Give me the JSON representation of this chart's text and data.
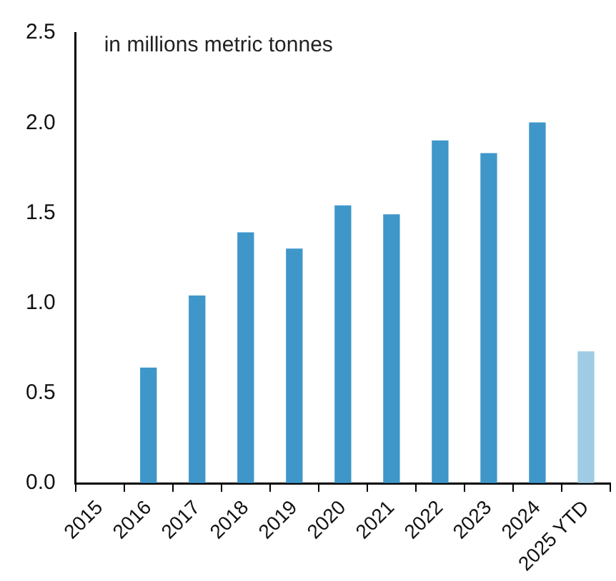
{
  "chart_data": {
    "type": "bar",
    "subtitle": "in millions metric tonnes",
    "categories": [
      "2015",
      "2016",
      "2017",
      "2018",
      "2019",
      "2020",
      "2021",
      "2022",
      "2023",
      "2024",
      "2025 YTD"
    ],
    "values": [
      null,
      0.64,
      1.04,
      1.39,
      1.3,
      1.54,
      1.49,
      1.9,
      1.83,
      2.0,
      0.73
    ],
    "colors": [
      "#3f97c9",
      "#3f97c9",
      "#3f97c9",
      "#3f97c9",
      "#3f97c9",
      "#3f97c9",
      "#3f97c9",
      "#3f97c9",
      "#3f97c9",
      "#3f97c9",
      "#a0cbe4"
    ],
    "ylim": [
      0,
      2.5
    ],
    "yticks": [
      {
        "value": 0,
        "label": "0.0"
      },
      {
        "value": 0.5,
        "label": "0.5"
      },
      {
        "value": 1,
        "label": "1.0"
      },
      {
        "value": 1.5,
        "label": "1.5"
      },
      {
        "value": 2,
        "label": "2.0"
      },
      {
        "value": 2.5,
        "label": "2.5"
      }
    ],
    "grid": false,
    "legend": false
  }
}
